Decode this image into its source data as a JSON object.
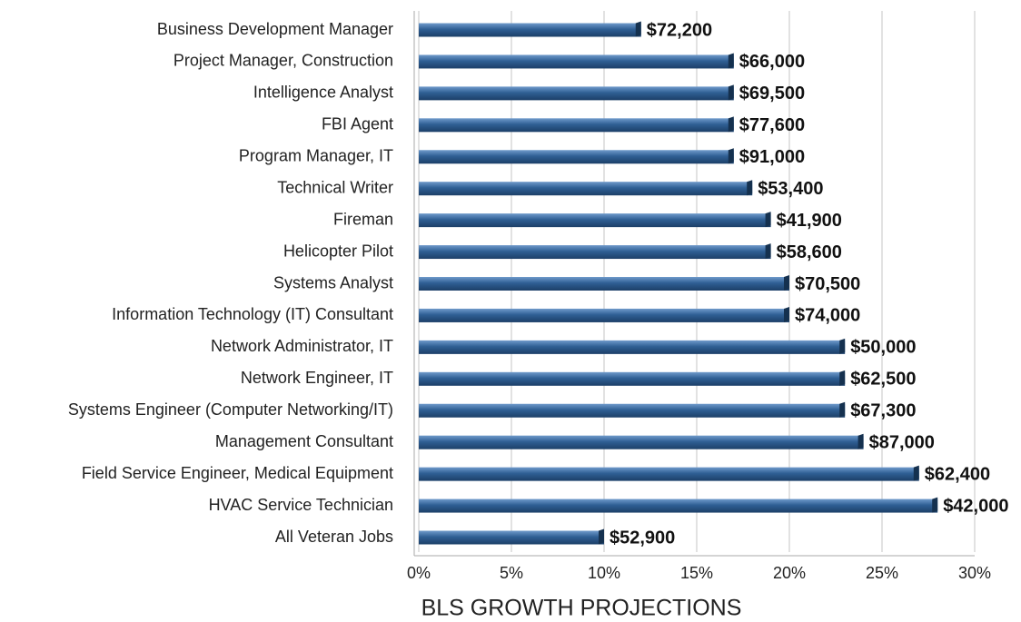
{
  "chart_data": {
    "type": "bar",
    "orientation": "horizontal",
    "x_label": "BLS GROWTH PROJECTIONS",
    "categories": [
      "Business Development Manager",
      "Project Manager, Construction",
      "Intelligence Analyst",
      "FBI Agent",
      "Program Manager, IT",
      "Technical Writer",
      "Fireman",
      "Helicopter Pilot",
      "Systems Analyst",
      "Information Technology (IT) Consultant",
      "Network Administrator, IT",
      "Network Engineer, IT",
      "Systems Engineer (Computer Networking/IT)",
      "Management Consultant",
      "Field Service Engineer, Medical Equipment",
      "HVAC Service Technician",
      "All Veteran Jobs"
    ],
    "values": [
      12,
      17,
      17,
      17,
      17,
      18,
      19,
      19,
      20,
      20,
      23,
      23,
      23,
      24,
      27,
      28,
      10
    ],
    "bar_labels": [
      "$72,200",
      "$66,000",
      "$69,500",
      "$77,600",
      "$91,000",
      "$53,400",
      "$41,900",
      "$58,600",
      "$70,500",
      "$74,000",
      "$50,000",
      "$62,500",
      "$67,300",
      "$87,000",
      "$62,400",
      "$42,000",
      "$52,900"
    ],
    "color": "#2f5f94",
    "xlim": [
      0,
      30
    ],
    "xticks": [
      {
        "value": 0,
        "label": "0%"
      },
      {
        "value": 5,
        "label": "5%"
      },
      {
        "value": 10,
        "label": "10%"
      },
      {
        "value": 15,
        "label": "15%"
      },
      {
        "value": 20,
        "label": "20%"
      },
      {
        "value": 25,
        "label": "25%"
      },
      {
        "value": 30,
        "label": "30%"
      }
    ],
    "grid": true
  }
}
